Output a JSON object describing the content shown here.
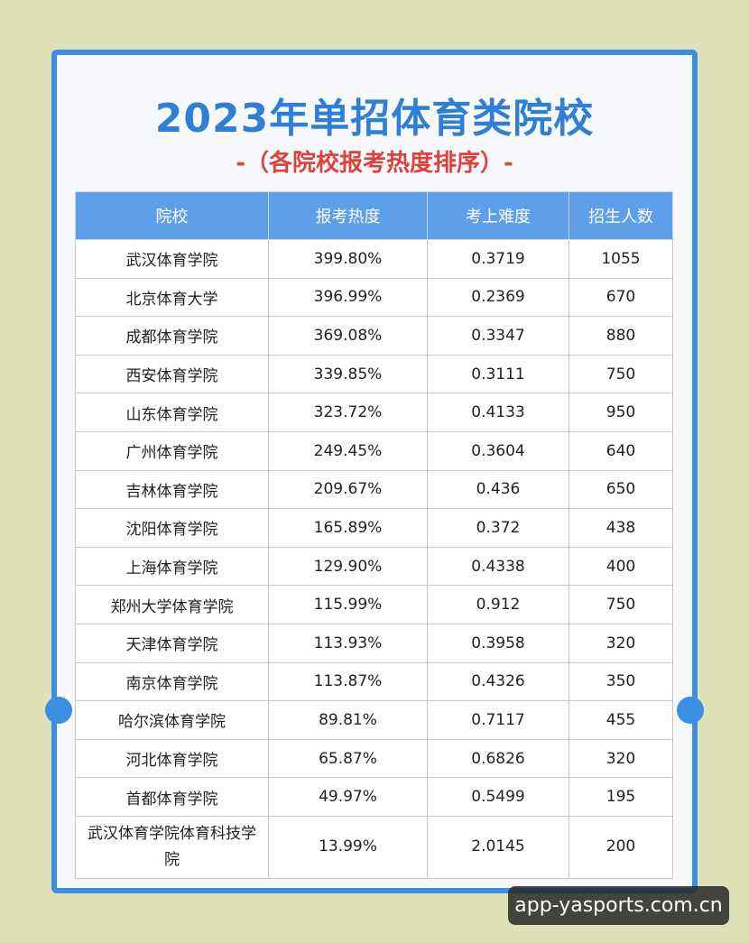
{
  "header": {
    "title": "2023年单招体育类院校",
    "subtitle": "-（各院校报考热度排序）-"
  },
  "table": {
    "columns": [
      "院校",
      "报考热度",
      "考上难度",
      "招生人数"
    ],
    "rows": [
      [
        "武汉体育学院",
        "399.80%",
        "0.3719",
        "1055"
      ],
      [
        "北京体育大学",
        "396.99%",
        "0.2369",
        "670"
      ],
      [
        "成都体育学院",
        "369.08%",
        "0.3347",
        "880"
      ],
      [
        "西安体育学院",
        "339.85%",
        "0.3111",
        "750"
      ],
      [
        "山东体育学院",
        "323.72%",
        "0.4133",
        "950"
      ],
      [
        "广州体育学院",
        "249.45%",
        "0.3604",
        "640"
      ],
      [
        "吉林体育学院",
        "209.67%",
        "0.436",
        "650"
      ],
      [
        "沈阳体育学院",
        "165.89%",
        "0.372",
        "438"
      ],
      [
        "上海体育学院",
        "129.90%",
        "0.4338",
        "400"
      ],
      [
        "郑州大学体育学院",
        "115.99%",
        "0.912",
        "750"
      ],
      [
        "天津体育学院",
        "113.93%",
        "0.3958",
        "320"
      ],
      [
        "南京体育学院",
        "113.87%",
        "0.4326",
        "350"
      ],
      [
        "哈尔滨体育学院",
        "89.81%",
        "0.7117",
        "455"
      ],
      [
        "河北体育学院",
        "65.87%",
        "0.6826",
        "320"
      ],
      [
        "首都体育学院",
        "49.97%",
        "0.5499",
        "195"
      ],
      [
        "武汉体育学院体育科技学院",
        "13.99%",
        "2.0145",
        "200"
      ]
    ]
  },
  "watermark": "app-yasports.com.cn"
}
